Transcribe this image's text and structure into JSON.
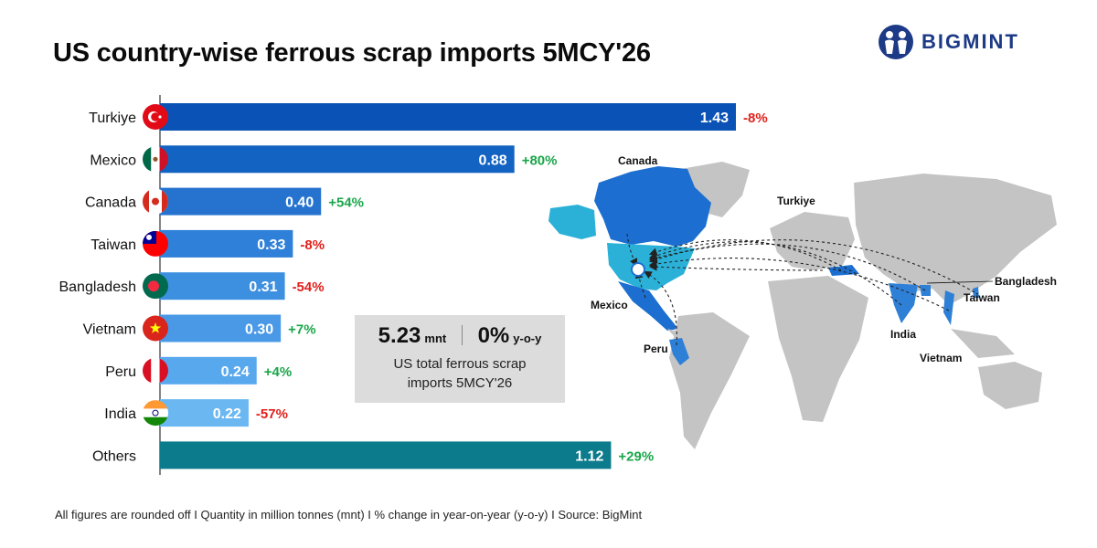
{
  "title": "US country-wise ferrous scrap imports 5MCY'26",
  "brand": {
    "name": "BIGMINT"
  },
  "chart_data": {
    "type": "bar",
    "orientation": "horizontal",
    "categories": [
      "Turkiye",
      "Mexico",
      "Canada",
      "Taiwan",
      "Bangladesh",
      "Vietnam",
      "Peru",
      "India",
      "Others"
    ],
    "values": [
      1.43,
      0.88,
      0.4,
      0.33,
      0.31,
      0.3,
      0.24,
      0.22,
      1.12
    ],
    "value_labels": [
      "1.43",
      "0.88",
      "0.40",
      "0.33",
      "0.31",
      "0.30",
      "0.24",
      "0.22",
      "1.12"
    ],
    "yoy_change": [
      "-8%",
      "+80%",
      "+54%",
      "-8%",
      "-54%",
      "+7%",
      "+4%",
      "-57%",
      "+29%"
    ],
    "bar_colors": [
      "#0a52b5",
      "#1363c2",
      "#2573cf",
      "#2f80d9",
      "#3d8fe0",
      "#4a99e6",
      "#58a8ee",
      "#6bb7f2",
      "#0c7b8c"
    ],
    "change_colors": {
      "positive": "#1aa64a",
      "negative": "#e0201b"
    },
    "xlim": [
      0,
      1.6
    ]
  },
  "kpi": {
    "value": "5.23",
    "unit": "mnt",
    "change": "0%",
    "change_unit": "y-o-y",
    "label": "US total ferrous scrap imports 5MCY'26"
  },
  "map": {
    "labels": [
      "Canada",
      "Turkiye",
      "Bangladesh",
      "Taiwan",
      "Mexico",
      "India",
      "Peru",
      "Vietnam"
    ],
    "colors": {
      "land": "#c4c4c4",
      "highlight": "#2e7fd6",
      "us": "#2bb1d8",
      "canada": "#1c6fd0"
    }
  },
  "footer": "All figures are rounded off I  Quantity in million tonnes (mnt)  I  % change in year-on-year (y-o-y)  I  Source: BigMint"
}
